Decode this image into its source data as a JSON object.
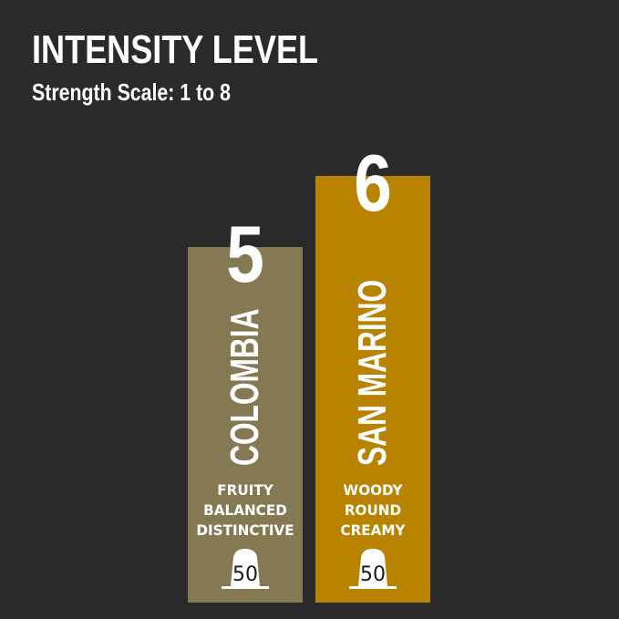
{
  "header": {
    "title": "INTENSITY LEVEL",
    "subtitle": "Strength Scale: 1 to 8"
  },
  "chart_data": {
    "type": "bar",
    "title": "INTENSITY LEVEL",
    "subtitle": "Strength Scale: 1 to 8",
    "ylim": [
      0,
      8
    ],
    "grid": false,
    "categories": [
      "COLOMBIA",
      "SAN MARINO"
    ],
    "values": [
      5,
      6
    ],
    "bars": [
      {
        "name": "COLOMBIA",
        "value": 5,
        "value_label": "5",
        "color": "#857953",
        "notes": [
          "FRUITY",
          "BALANCED",
          "DISTINCTIVE"
        ],
        "capsule_count": "50"
      },
      {
        "name": "SAN MARINO",
        "value": 6,
        "value_label": "6",
        "color": "#b98300",
        "notes": [
          "WOODY",
          "ROUND",
          "CREAMY"
        ],
        "capsule_count": "50"
      }
    ]
  },
  "colors": {
    "background": "#2a2a2a",
    "text": "#ffffff",
    "capsule": "#ffffff"
  }
}
